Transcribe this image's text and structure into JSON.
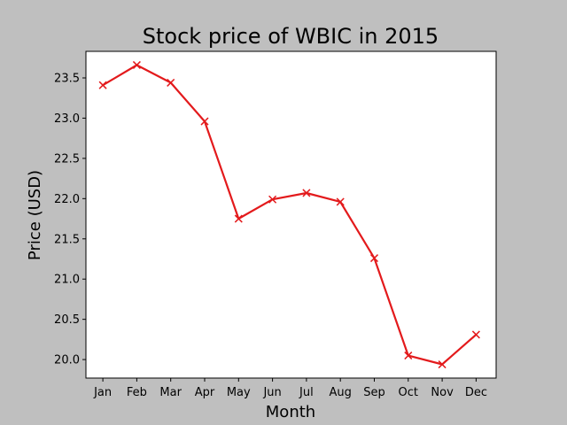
{
  "chart_data": {
    "type": "line",
    "title": "Stock price of WBIC in 2015",
    "xlabel": "Month",
    "ylabel": "Price (USD)",
    "categories": [
      "Jan",
      "Feb",
      "Mar",
      "Apr",
      "May",
      "Jun",
      "Jul",
      "Aug",
      "Sep",
      "Oct",
      "Nov",
      "Dec"
    ],
    "series": [
      {
        "values": [
          23.41,
          23.66,
          23.44,
          22.96,
          21.75,
          21.99,
          22.07,
          21.96,
          21.26,
          20.05,
          19.94,
          20.31
        ]
      }
    ],
    "yticks": [
      "20.0",
      "20.5",
      "21.0",
      "21.5",
      "22.0",
      "22.5",
      "23.0",
      "23.5"
    ],
    "ylim": [
      19.77,
      23.83
    ],
    "grid": false,
    "line_color": "#e31a1c",
    "marker": "x"
  },
  "colors": {
    "figure_background": "#bfbfbf",
    "plot_background": "#ffffff"
  }
}
